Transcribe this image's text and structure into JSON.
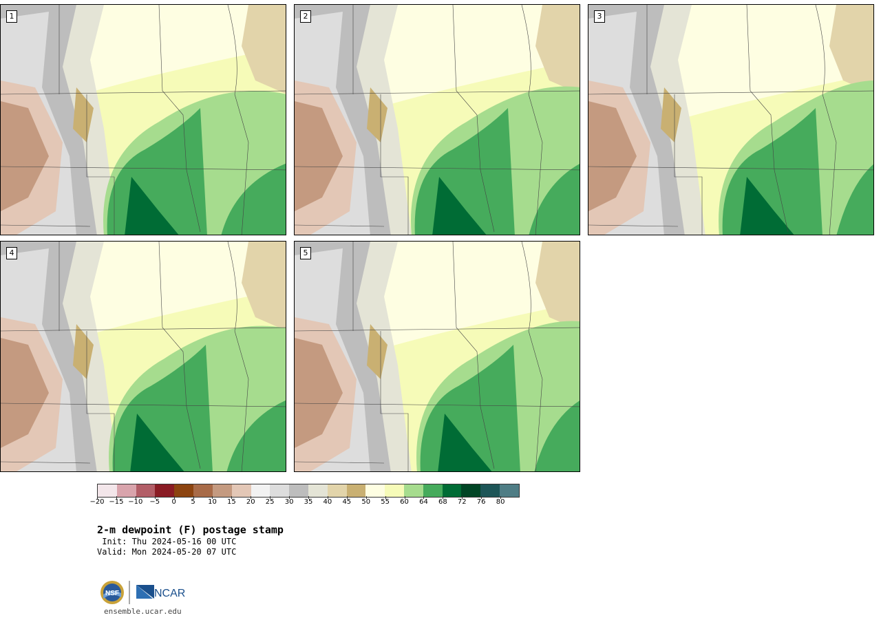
{
  "stamps": [
    {
      "label": "1",
      "variant": 0
    },
    {
      "label": "2",
      "variant": 1
    },
    {
      "label": "3",
      "variant": 2
    },
    {
      "label": "4",
      "variant": 3
    },
    {
      "label": "5",
      "variant": 4
    }
  ],
  "colorbar": {
    "colors": [
      "#f3e6ea",
      "#d9a4ac",
      "#b25e67",
      "#8a1c24",
      "#8c4410",
      "#a86b48",
      "#c49a80",
      "#e3c7b6",
      "#f2f2f2",
      "#dddddd",
      "#bdbdbd",
      "#e4e4d6",
      "#e2d4aa",
      "#c9b072",
      "#fefee2",
      "#f6fbb8",
      "#a6dc8e",
      "#46ab5c",
      "#006c35",
      "#004525",
      "#1d5557",
      "#4f7d85"
    ],
    "tick_labels": [
      "−20",
      "−15",
      "−10",
      "−5",
      "0",
      "5",
      "10",
      "15",
      "20",
      "25",
      "30",
      "35",
      "40",
      "45",
      "50",
      "55",
      "60",
      "64",
      "68",
      "72",
      "76",
      "80"
    ]
  },
  "title": "2-m dewpoint (F) postage stamp",
  "init": " Init: Thu 2024-05-16 00 UTC",
  "valid": "Valid: Mon 2024-05-20 07 UTC",
  "logos": {
    "nsf": "NSF",
    "ncar": "NCAR"
  },
  "website": "ensemble.ucar.edu"
}
